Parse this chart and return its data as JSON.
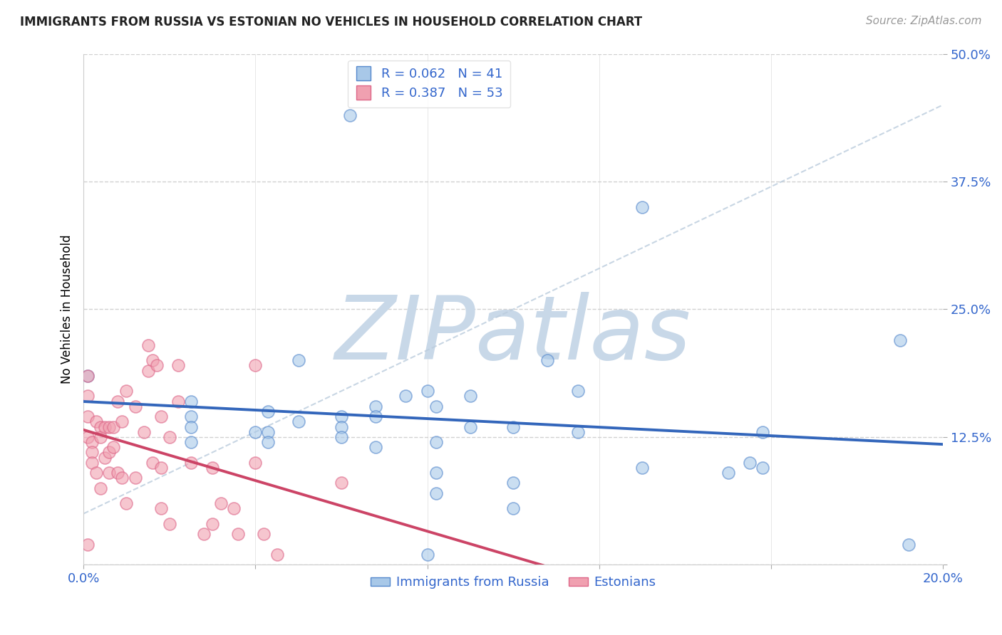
{
  "title": "IMMIGRANTS FROM RUSSIA VS ESTONIAN NO VEHICLES IN HOUSEHOLD CORRELATION CHART",
  "source": "Source: ZipAtlas.com",
  "ylabel": "No Vehicles in Household",
  "xlim": [
    0.0,
    0.2
  ],
  "ylim": [
    0.0,
    0.5
  ],
  "xtick_positions": [
    0.0,
    0.04,
    0.08,
    0.12,
    0.16,
    0.2
  ],
  "xtick_labels": [
    "0.0%",
    "",
    "",
    "",
    "",
    "20.0%"
  ],
  "ytick_positions": [
    0.0,
    0.125,
    0.25,
    0.375,
    0.5
  ],
  "ytick_labels": [
    "",
    "12.5%",
    "25.0%",
    "37.5%",
    "50.0%"
  ],
  "blue_R": 0.062,
  "blue_N": 41,
  "pink_R": 0.387,
  "pink_N": 53,
  "blue_color": "#A8C8E8",
  "pink_color": "#F0A0B0",
  "blue_edge_color": "#5588CC",
  "pink_edge_color": "#DD6688",
  "blue_line_color": "#3366BB",
  "pink_line_color": "#CC4466",
  "watermark_color": "#C8D8E8",
  "legend_label_blue": "Immigrants from Russia",
  "legend_label_pink": "Estonians",
  "blue_x": [
    0.001,
    0.025,
    0.025,
    0.025,
    0.025,
    0.04,
    0.043,
    0.043,
    0.043,
    0.05,
    0.05,
    0.06,
    0.06,
    0.06,
    0.062,
    0.068,
    0.068,
    0.068,
    0.075,
    0.08,
    0.082,
    0.082,
    0.082,
    0.082,
    0.09,
    0.09,
    0.1,
    0.1,
    0.1,
    0.108,
    0.115,
    0.115,
    0.13,
    0.15,
    0.155,
    0.158,
    0.158,
    0.19,
    0.192,
    0.13,
    0.08
  ],
  "blue_y": [
    0.185,
    0.16,
    0.145,
    0.135,
    0.12,
    0.13,
    0.15,
    0.13,
    0.12,
    0.2,
    0.14,
    0.145,
    0.135,
    0.125,
    0.44,
    0.155,
    0.145,
    0.115,
    0.165,
    0.17,
    0.155,
    0.12,
    0.07,
    0.09,
    0.165,
    0.135,
    0.135,
    0.08,
    0.055,
    0.2,
    0.17,
    0.13,
    0.095,
    0.09,
    0.1,
    0.13,
    0.095,
    0.22,
    0.02,
    0.35,
    0.01
  ],
  "pink_x": [
    0.001,
    0.001,
    0.001,
    0.001,
    0.001,
    0.002,
    0.002,
    0.002,
    0.003,
    0.003,
    0.004,
    0.004,
    0.004,
    0.005,
    0.005,
    0.006,
    0.006,
    0.006,
    0.007,
    0.007,
    0.008,
    0.008,
    0.009,
    0.009,
    0.01,
    0.01,
    0.012,
    0.012,
    0.014,
    0.015,
    0.015,
    0.016,
    0.016,
    0.017,
    0.018,
    0.018,
    0.018,
    0.02,
    0.02,
    0.022,
    0.022,
    0.025,
    0.028,
    0.03,
    0.03,
    0.032,
    0.035,
    0.036,
    0.04,
    0.04,
    0.042,
    0.045,
    0.06
  ],
  "pink_y": [
    0.185,
    0.165,
    0.145,
    0.125,
    0.02,
    0.12,
    0.11,
    0.1,
    0.14,
    0.09,
    0.135,
    0.125,
    0.075,
    0.135,
    0.105,
    0.135,
    0.11,
    0.09,
    0.135,
    0.115,
    0.16,
    0.09,
    0.14,
    0.085,
    0.17,
    0.06,
    0.155,
    0.085,
    0.13,
    0.215,
    0.19,
    0.2,
    0.1,
    0.195,
    0.145,
    0.095,
    0.055,
    0.125,
    0.04,
    0.195,
    0.16,
    0.1,
    0.03,
    0.095,
    0.04,
    0.06,
    0.055,
    0.03,
    0.195,
    0.1,
    0.03,
    0.01,
    0.08
  ],
  "ref_line_x": [
    0.0,
    0.2
  ],
  "ref_line_y": [
    0.05,
    0.45
  ]
}
